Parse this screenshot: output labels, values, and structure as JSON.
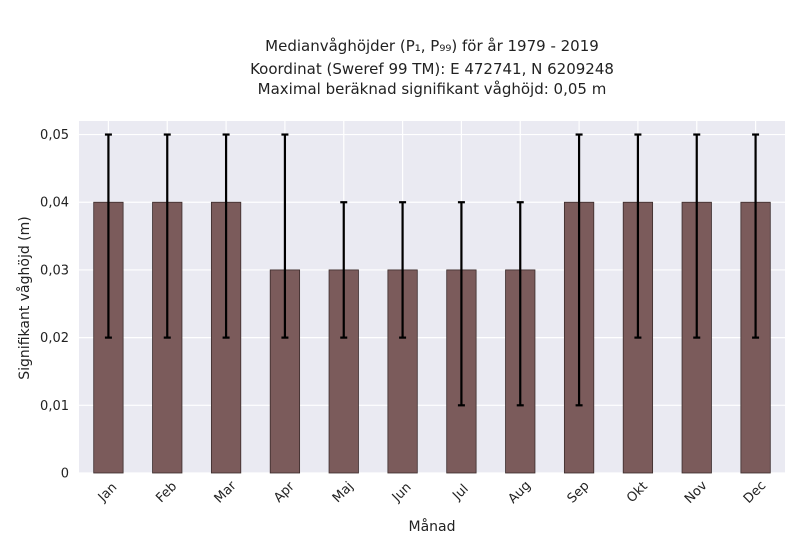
{
  "chart_data": {
    "type": "bar",
    "title_lines": [
      "Medianvåghöjder (P₁, P₉₉) för år 1979 - 2019",
      "Koordinat (Sweref 99 TM): E 472741, N 6209248",
      "Maximal beräknad signifikant våghöjd: 0,05 m"
    ],
    "xlabel": "Månad",
    "ylabel": "Signifikant våghöjd (m)",
    "categories": [
      "Jan",
      "Feb",
      "Mar",
      "Apr",
      "Maj",
      "Jun",
      "Jul",
      "Aug",
      "Sep",
      "Okt",
      "Nov",
      "Dec"
    ],
    "values": [
      0.04,
      0.04,
      0.04,
      0.03,
      0.03,
      0.03,
      0.03,
      0.03,
      0.04,
      0.04,
      0.04,
      0.04
    ],
    "p1": [
      0.02,
      0.02,
      0.02,
      0.02,
      0.02,
      0.02,
      0.01,
      0.01,
      0.01,
      0.02,
      0.02,
      0.02
    ],
    "p99": [
      0.05,
      0.05,
      0.05,
      0.05,
      0.04,
      0.04,
      0.04,
      0.04,
      0.05,
      0.05,
      0.05,
      0.05
    ],
    "ylim": [
      0,
      0.052
    ],
    "yticks": [
      0,
      0.01,
      0.02,
      0.03,
      0.04,
      0.05
    ],
    "ytick_labels": [
      "0",
      "0,01",
      "0,02",
      "0,03",
      "0,04",
      "0,05"
    ],
    "grid": true,
    "colors": {
      "bar": "#7b5b5b",
      "bar_edge": "#3a2a2a",
      "errorbar": "#000000",
      "plot_bg": "#eaeaf2",
      "grid": "#ffffff"
    }
  }
}
